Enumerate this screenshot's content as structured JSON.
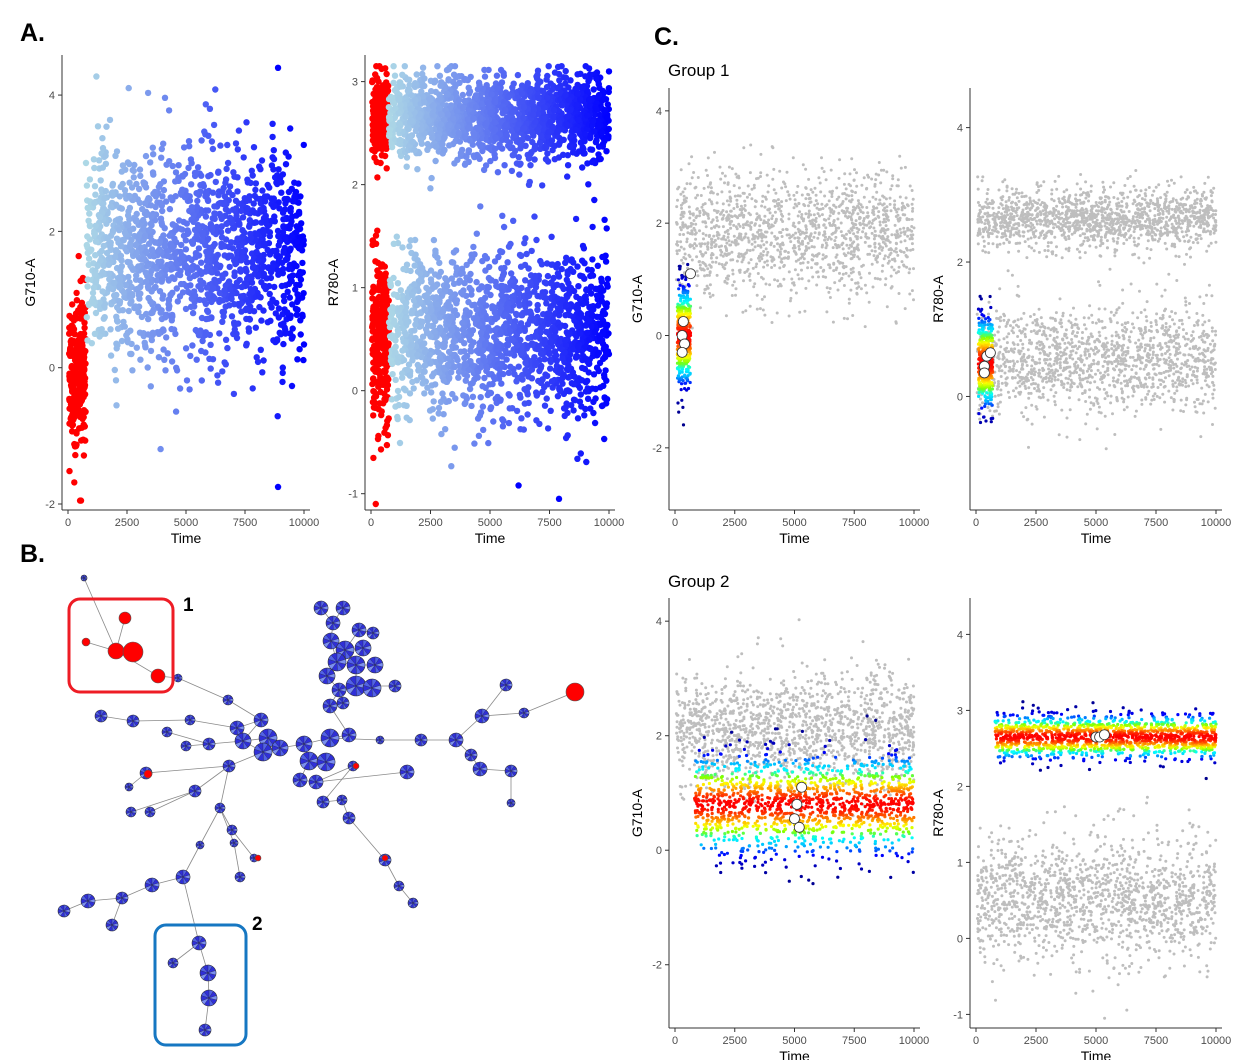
{
  "panels": {
    "a": "A.",
    "b": "B.",
    "c": "C."
  },
  "groups": {
    "group1": "Group 1",
    "group2": "Group 2"
  },
  "tree": {
    "box1_label": "1",
    "box2_label": "2"
  },
  "chart_data": [
    {
      "id": "A-G710",
      "type": "scatter",
      "xlabel": "Time",
      "ylabel": "G710-A",
      "xlim": [
        0,
        10000
      ],
      "ylim": [
        -2,
        4.5
      ],
      "xticks": [
        0,
        2500,
        5000,
        7500,
        10000
      ],
      "yticks": [
        -2,
        0,
        2,
        4
      ],
      "grid": false,
      "coloring": "time-gate gradient (red first gate, light blue to blue)",
      "colors": [
        "#ff0000",
        "#add8e6",
        "#0000ff"
      ],
      "series": [
        {
          "values": [
            {
              "x_range": [
                50,
                750
              ],
              "y_mean": 0.0,
              "y_sd": 0.55
            }
          ]
        },
        {
          "values": [
            {
              "x_range": [
                750,
                10000
              ],
              "y_mean": 1.7,
              "y_sd": 0.75
            }
          ]
        }
      ],
      "annotations": [
        {
          "x": 8900,
          "y": 4.4
        },
        {
          "x": 8900,
          "y": -1.75
        }
      ]
    },
    {
      "id": "A-R780",
      "type": "scatter",
      "xlabel": "Time",
      "ylabel": "R780-A",
      "xlim": [
        0,
        10000
      ],
      "ylim": [
        -1.1,
        3.2
      ],
      "xticks": [
        0,
        2500,
        5000,
        7500,
        10000
      ],
      "yticks": [
        -1,
        0,
        1,
        2,
        3
      ],
      "grid": false,
      "colors": [
        "#ff0000",
        "#add8e6",
        "#0000ff"
      ],
      "series": [
        {
          "values": [
            {
              "x_range": [
                50,
                750
              ],
              "y_mean": 0.5,
              "y_sd": 0.4
            },
            {
              "x_range": [
                50,
                750
              ],
              "y_mean": 2.65,
              "y_sd": 0.2
            }
          ]
        },
        {
          "values": [
            {
              "x_range": [
                750,
                10000
              ],
              "y_mean": 0.55,
              "y_sd": 0.4
            },
            {
              "x_range": [
                750,
                10000
              ],
              "y_mean": 2.65,
              "y_sd": 0.2
            }
          ]
        }
      ],
      "annotations": [
        {
          "x": 200,
          "y": -1.1
        },
        {
          "x": 6200,
          "y": -0.92
        },
        {
          "x": 7900,
          "y": -1.05
        }
      ]
    },
    {
      "id": "C-G1-G710",
      "type": "scatter",
      "title": "Group 1",
      "xlabel": "Time",
      "ylabel": "G710-A",
      "xlim": [
        0,
        10000
      ],
      "ylim": [
        -3,
        4.3
      ],
      "xticks": [
        0,
        2500,
        5000,
        7500,
        10000
      ],
      "yticks": [
        -2,
        0,
        2,
        4
      ],
      "grid": false,
      "background_color": "#bebebe",
      "density_colors": [
        "#00008b",
        "#0000ff",
        "#00bfff",
        "#00ffff",
        "#7fff00",
        "#ffff00",
        "#ff8c00",
        "#ff0000"
      ],
      "background": {
        "x_range": [
          50,
          10000
        ],
        "y_mean": 1.85,
        "y_sd": 0.55
      },
      "highlight": {
        "x_range": [
          100,
          650
        ],
        "y_mean": 0.0,
        "y_sd": 0.45
      },
      "centroids": [
        {
          "x": 350,
          "y": 0.25
        },
        {
          "x": 300,
          "y": 0.0
        },
        {
          "x": 400,
          "y": -0.15
        },
        {
          "x": 300,
          "y": -0.3
        },
        {
          "x": 650,
          "y": 1.1
        }
      ]
    },
    {
      "id": "C-G1-R780",
      "type": "scatter",
      "xlabel": "Time",
      "ylabel": "R780-A",
      "xlim": [
        0,
        10000
      ],
      "ylim": [
        -1.6,
        4.5
      ],
      "xticks": [
        0,
        2500,
        5000,
        7500,
        10000
      ],
      "yticks": [
        0,
        2,
        4
      ],
      "grid": false,
      "background_color": "#bebebe",
      "density_colors": [
        "#00008b",
        "#0000ff",
        "#00bfff",
        "#00ffff",
        "#7fff00",
        "#ffff00",
        "#ff8c00",
        "#ff0000"
      ],
      "background": [
        {
          "x_range": [
            50,
            10000
          ],
          "y_mean": 0.55,
          "y_sd": 0.4
        },
        {
          "x_range": [
            50,
            10000
          ],
          "y_mean": 2.65,
          "y_sd": 0.22
        }
      ],
      "highlight": {
        "x_range": [
          100,
          700
        ],
        "y_mean": 0.5,
        "y_sd": 0.35
      },
      "centroids": [
        {
          "x": 450,
          "y": 0.6
        },
        {
          "x": 350,
          "y": 0.45
        },
        {
          "x": 600,
          "y": 0.65
        },
        {
          "x": 350,
          "y": 0.35
        }
      ]
    },
    {
      "id": "C-G2-G710",
      "type": "scatter",
      "title": "Group 2",
      "xlabel": "Time",
      "ylabel": "G710-A",
      "xlim": [
        0,
        10000
      ],
      "ylim": [
        -3,
        4.3
      ],
      "xticks": [
        0,
        2500,
        5000,
        7500,
        10000
      ],
      "yticks": [
        -2,
        0,
        2,
        4
      ],
      "grid": false,
      "background_color": "#bebebe",
      "density_colors": [
        "#00008b",
        "#0000ff",
        "#00bfff",
        "#00ffff",
        "#7fff00",
        "#ffff00",
        "#ff8c00",
        "#ff0000"
      ],
      "background": {
        "x_range": [
          50,
          10000
        ],
        "y_mean": 2.1,
        "y_sd": 0.5
      },
      "highlight": {
        "x_range": [
          800,
          10000
        ],
        "y_mean": 0.8,
        "y_sd": 0.45
      },
      "centroids": [
        {
          "x": 5300,
          "y": 1.1
        },
        {
          "x": 5100,
          "y": 0.8
        },
        {
          "x": 5000,
          "y": 0.55
        },
        {
          "x": 5200,
          "y": 0.4
        }
      ]
    },
    {
      "id": "C-G2-R780",
      "type": "scatter",
      "xlabel": "Time",
      "ylabel": "R780-A",
      "xlim": [
        0,
        10000
      ],
      "ylim": [
        -1.1,
        4.4
      ],
      "xticks": [
        0,
        2500,
        5000,
        7500,
        10000
      ],
      "yticks": [
        -1,
        0,
        1,
        2,
        3,
        4
      ],
      "grid": false,
      "background_color": "#bebebe",
      "density_colors": [
        "#00008b",
        "#0000ff",
        "#00bfff",
        "#00ffff",
        "#7fff00",
        "#ffff00",
        "#ff8c00",
        "#ff0000"
      ],
      "background": {
        "x_range": [
          50,
          10000
        ],
        "y_mean": 0.5,
        "y_sd": 0.42
      },
      "highlight": {
        "x_range": [
          800,
          10000
        ],
        "y_mean": 2.65,
        "y_sd": 0.15
      },
      "centroids": [
        {
          "x": 5000,
          "y": 2.65
        },
        {
          "x": 5150,
          "y": 2.65
        },
        {
          "x": 5350,
          "y": 2.68
        }
      ]
    }
  ]
}
